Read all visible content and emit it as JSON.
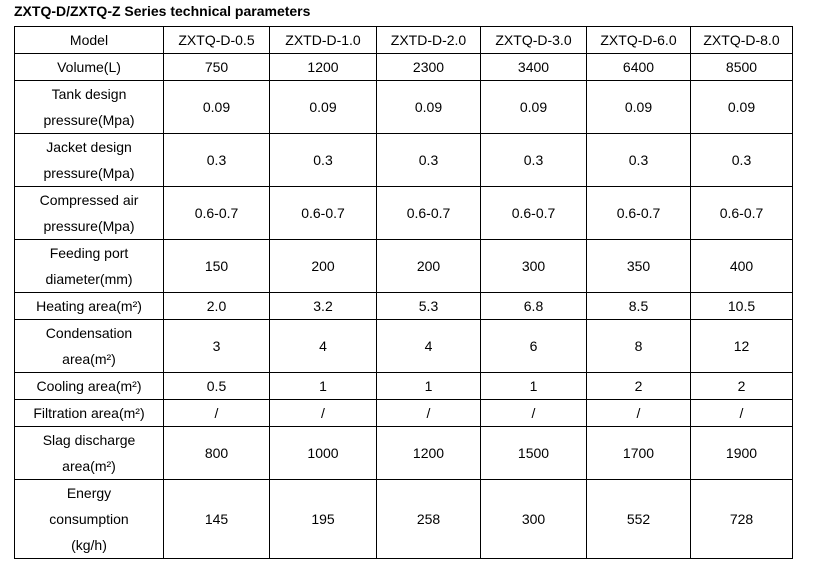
{
  "title": "ZXTQ-D/ZXTQ-Z Series technical parameters",
  "table": {
    "header": {
      "label": [
        "Model"
      ],
      "values": [
        "ZXTQ-D-0.5",
        "ZXTD-D-1.0",
        "ZXTD-D-2.0",
        "ZXTQ-D-3.0",
        "ZXTQ-D-6.0",
        "ZXTQ-D-8.0"
      ]
    },
    "rows": [
      {
        "label": [
          "Volume(L)"
        ],
        "values": [
          "750",
          "1200",
          "2300",
          "3400",
          "6400",
          "8500"
        ]
      },
      {
        "label": [
          "Tank design",
          "pressure(Mpa)"
        ],
        "values": [
          "0.09",
          "0.09",
          "0.09",
          "0.09",
          "0.09",
          "0.09"
        ]
      },
      {
        "label": [
          "Jacket design",
          "pressure(Mpa)"
        ],
        "values": [
          "0.3",
          "0.3",
          "0.3",
          "0.3",
          "0.3",
          "0.3"
        ]
      },
      {
        "label": [
          "Compressed air",
          "pressure(Mpa)"
        ],
        "values": [
          "0.6-0.7",
          "0.6-0.7",
          "0.6-0.7",
          "0.6-0.7",
          "0.6-0.7",
          "0.6-0.7"
        ]
      },
      {
        "label": [
          "Feeding port",
          "diameter(mm)"
        ],
        "values": [
          "150",
          "200",
          "200",
          "300",
          "350",
          "400"
        ]
      },
      {
        "label": [
          "Heating area(m²)"
        ],
        "values": [
          "2.0",
          "3.2",
          "5.3",
          "6.8",
          "8.5",
          "10.5"
        ]
      },
      {
        "label": [
          "Condensation",
          "area(m²)"
        ],
        "values": [
          "3",
          "4",
          "4",
          "6",
          "8",
          "12"
        ]
      },
      {
        "label": [
          "Cooling area(m²)"
        ],
        "values": [
          "0.5",
          "1",
          "1",
          "1",
          "2",
          "2"
        ]
      },
      {
        "label": [
          "Filtration area(m²)"
        ],
        "values": [
          "/",
          "/",
          "/",
          "/",
          "/",
          "/"
        ]
      },
      {
        "label": [
          "Slag discharge",
          "area(m²)"
        ],
        "values": [
          "800",
          "1000",
          "1200",
          "1500",
          "1700",
          "1900"
        ]
      },
      {
        "label": [
          "Energy",
          "consumption",
          "(kg/h)"
        ],
        "values": [
          "145",
          "195",
          "258",
          "300",
          "552",
          "728"
        ]
      }
    ]
  }
}
